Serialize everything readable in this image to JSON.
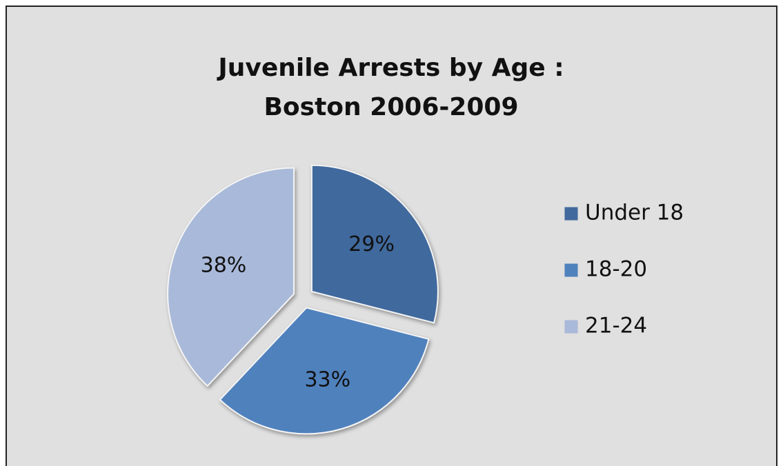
{
  "chart_data": {
    "type": "pie",
    "title": [
      "Juvenile Arrests by Age :",
      "Boston 2006-2009"
    ],
    "categories": [
      "Under 18",
      "18-20",
      "21-24"
    ],
    "values": [
      29,
      33,
      38
    ],
    "value_labels": [
      "29%",
      "33%",
      "38%"
    ],
    "colors": [
      "#41699d",
      "#4f81bd",
      "#a9b9d9"
    ],
    "legend": "right"
  }
}
